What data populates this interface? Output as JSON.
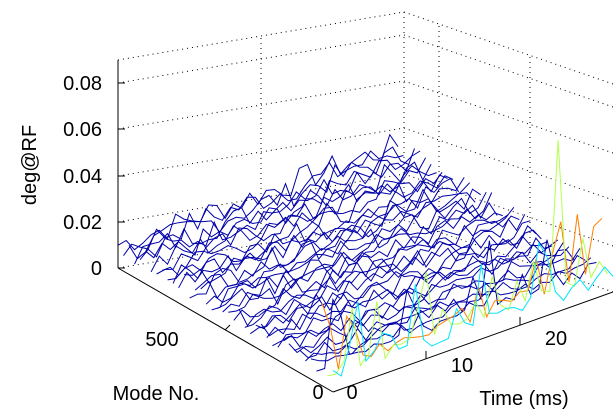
{
  "chart_data": {
    "type": "waterfall-3d",
    "title": "",
    "xlabel": "Time (ms)",
    "ylabel": "Mode No.",
    "zlabel": "deg@RF",
    "xlim": [
      0,
      30
    ],
    "ylim": [
      0,
      1000
    ],
    "zlim": [
      0,
      0.09
    ],
    "xticks": [
      "0",
      "10",
      "20"
    ],
    "yticks": [
      "0",
      "500"
    ],
    "zticks": [
      "0",
      "0.02",
      "0.04",
      "0.06",
      "0.08"
    ],
    "grid": "dotted",
    "colormap": "jet",
    "num_traces": 40,
    "approx_peak_value": 0.072,
    "approx_peak_time_ms": 25
  }
}
